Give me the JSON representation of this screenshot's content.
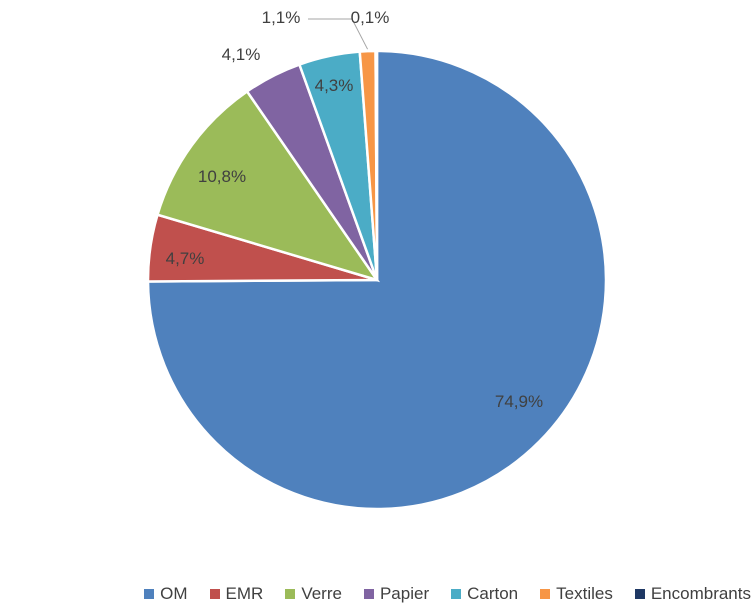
{
  "chart_data": {
    "type": "pie",
    "title": "",
    "legend_position": "bottom",
    "slices": [
      {
        "name": "OM",
        "value": 74.9,
        "label": "74,9%",
        "color": "#4F81BD"
      },
      {
        "name": "EMR",
        "value": 4.7,
        "label": "4,7%",
        "color": "#C0504D"
      },
      {
        "name": "Verre",
        "value": 10.8,
        "label": "10,8%",
        "color": "#9BBB59"
      },
      {
        "name": "Papier",
        "value": 4.1,
        "label": "4,1%",
        "color": "#8064A2"
      },
      {
        "name": "Carton",
        "value": 4.3,
        "label": "4,3%",
        "color": "#4BACC6"
      },
      {
        "name": "Textiles",
        "value": 1.1,
        "label": "1,1%",
        "color": "#F79646"
      },
      {
        "name": "Encombrants",
        "value": 0.1,
        "label": "0,1%",
        "color": "#1F3864"
      }
    ]
  }
}
